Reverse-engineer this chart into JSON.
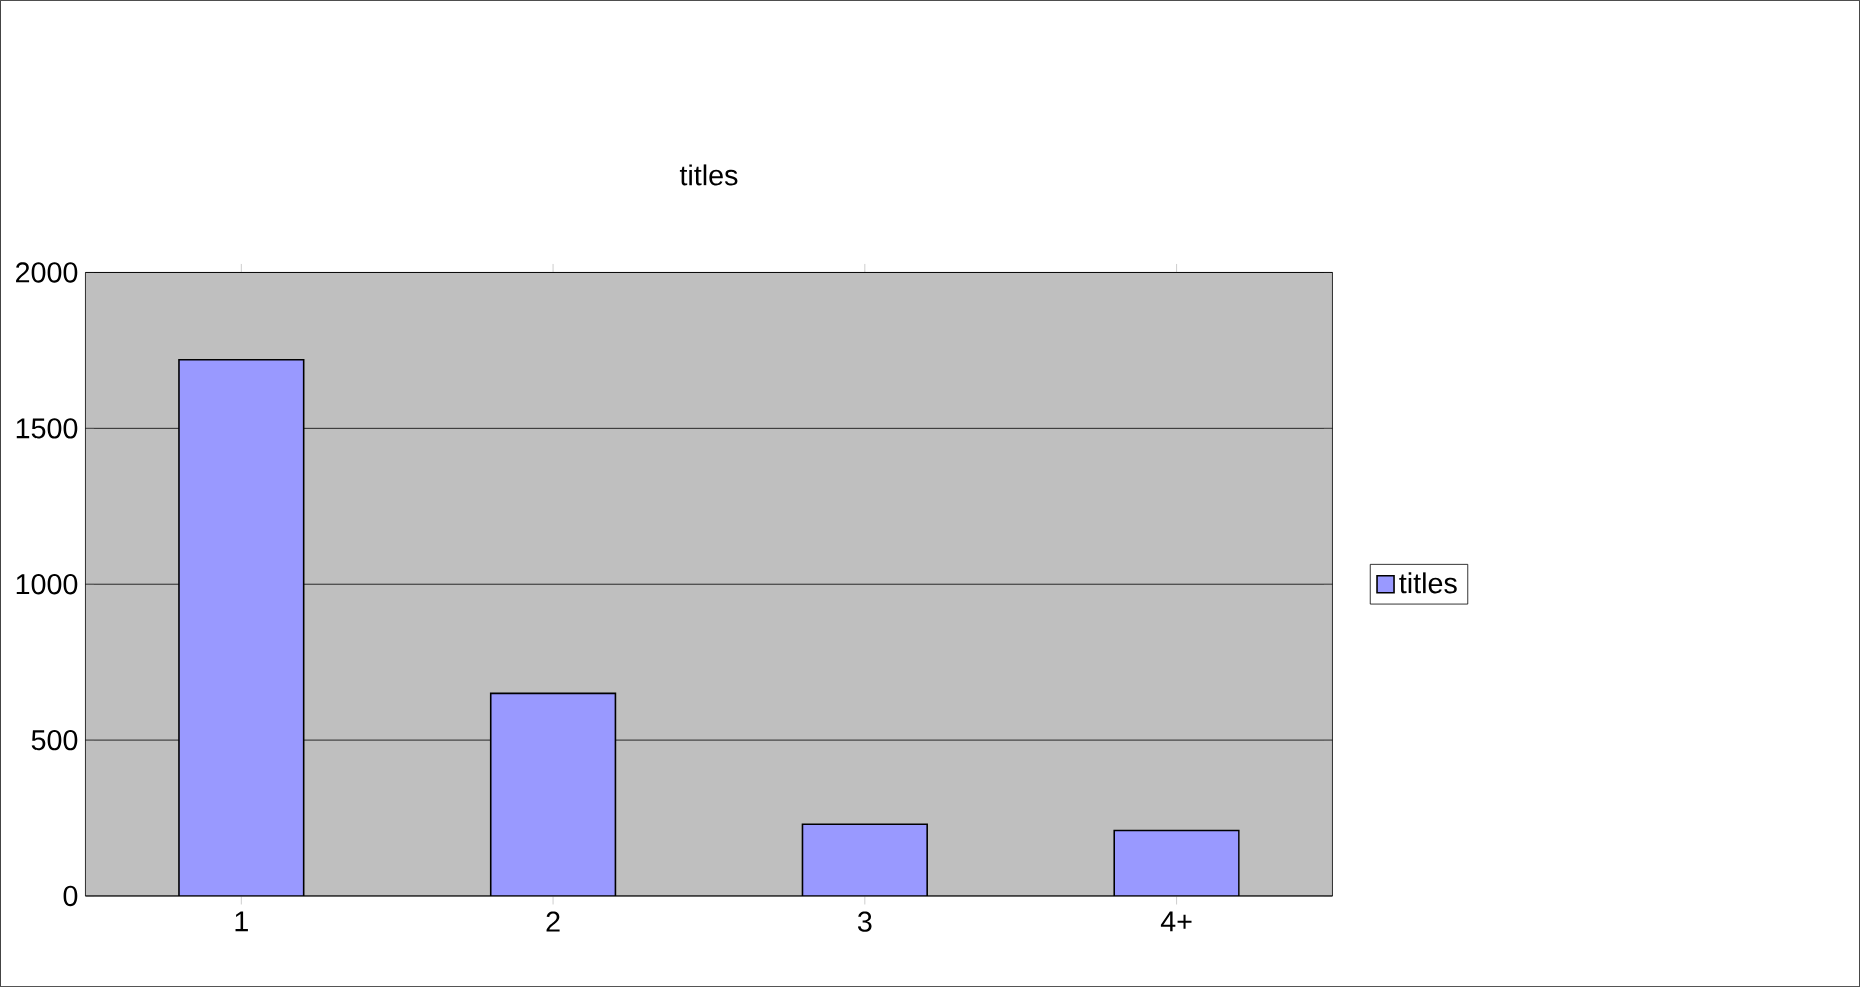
{
  "chart_data": {
    "type": "bar",
    "title": "titles",
    "categories": [
      "1",
      "2",
      "3",
      "4+"
    ],
    "series": [
      {
        "name": "titles",
        "color": "#9999ff",
        "values": [
          1720,
          650,
          230,
          210
        ]
      }
    ],
    "ylim": [
      0,
      2000
    ],
    "yticks": [
      0,
      500,
      1000,
      1500,
      2000
    ],
    "grid": "y",
    "legend": "right"
  }
}
